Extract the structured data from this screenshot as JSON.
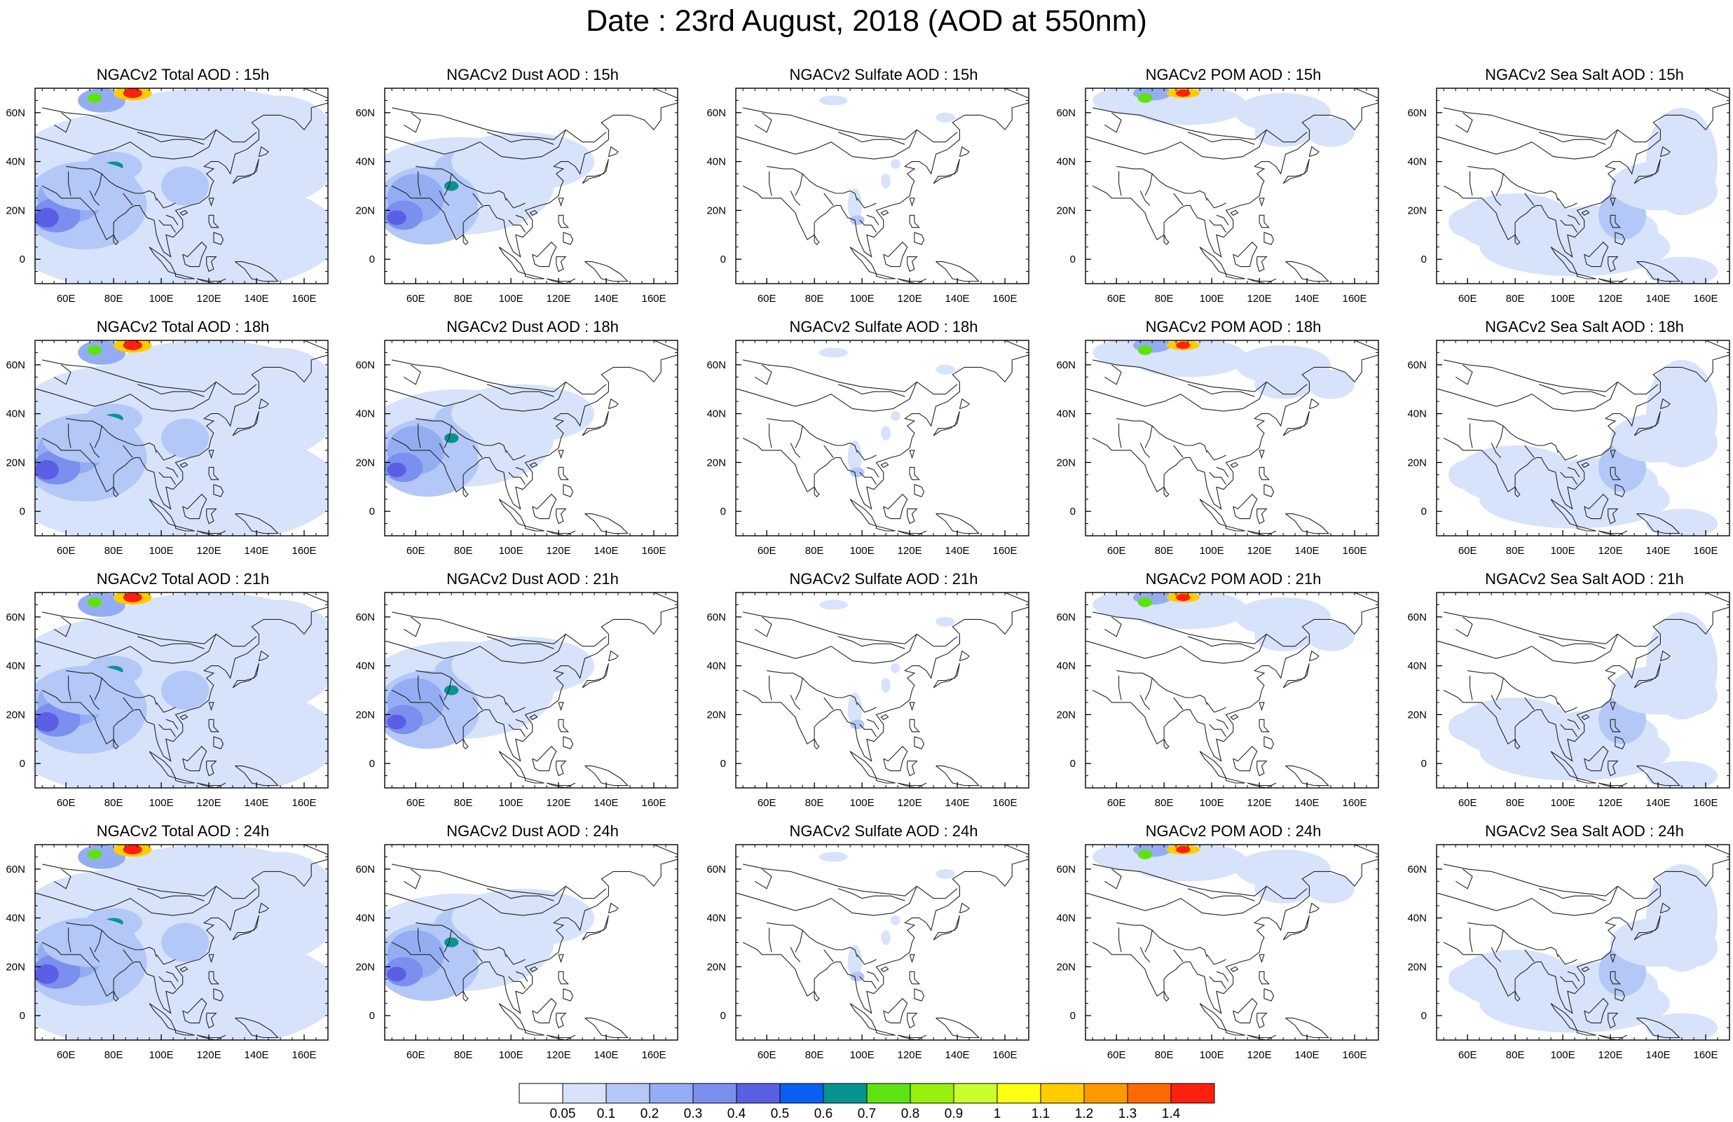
{
  "title": "Date : 23rd August, 2018 (AOD at 550nm)",
  "panels": [
    [
      "NGACv2 Total AOD : 15h",
      "NGACv2 Dust AOD : 15h",
      "NGACv2 Sulfate AOD : 15h",
      "NGACv2 POM AOD : 15h",
      "NGACv2 Sea Salt AOD : 15h"
    ],
    [
      "NGACv2 Total AOD : 18h",
      "NGACv2 Dust AOD : 18h",
      "NGACv2 Sulfate AOD : 18h",
      "NGACv2 POM AOD : 18h",
      "NGACv2 Sea Salt AOD : 18h"
    ],
    [
      "NGACv2 Total AOD : 21h",
      "NGACv2 Dust AOD : 21h",
      "NGACv2 Sulfate AOD : 21h",
      "NGACv2 POM AOD : 21h",
      "NGACv2 Sea Salt AOD : 21h"
    ],
    [
      "NGACv2 Total AOD : 24h",
      "NGACv2 Dust AOD : 24h",
      "NGACv2 Sulfate AOD : 24h",
      "NGACv2 POM AOD : 24h",
      "NGACv2 Sea Salt  AOD : 24h"
    ]
  ],
  "map": {
    "lon_ticks": [
      "60E",
      "80E",
      "100E",
      "120E",
      "140E",
      "160E"
    ],
    "lat_ticks": [
      "60N",
      "40N",
      "20N",
      "0"
    ],
    "lon_values": [
      60,
      80,
      100,
      120,
      140,
      160
    ],
    "lat_values": [
      60,
      40,
      20,
      0
    ],
    "lon_range": [
      47,
      170
    ],
    "lat_range": [
      -10,
      70
    ]
  },
  "colorbar": {
    "labels": [
      "0.05",
      "0.1",
      "0.2",
      "0.3",
      "0.4",
      "0.5",
      "0.6",
      "0.7",
      "0.8",
      "0.9",
      "1",
      "1.1",
      "1.2",
      "1.3",
      "1.4"
    ],
    "colors": [
      "#ffffff",
      "#d7e3fb",
      "#b3c8f7",
      "#94adf2",
      "#7b8fee",
      "#5a5fe4",
      "#0a5ff0",
      "#07938f",
      "#5ee312",
      "#98f00e",
      "#c9ff2f",
      "#ffff14",
      "#ffcc00",
      "#ff9900",
      "#ff6a00",
      "#ff2010"
    ]
  }
}
